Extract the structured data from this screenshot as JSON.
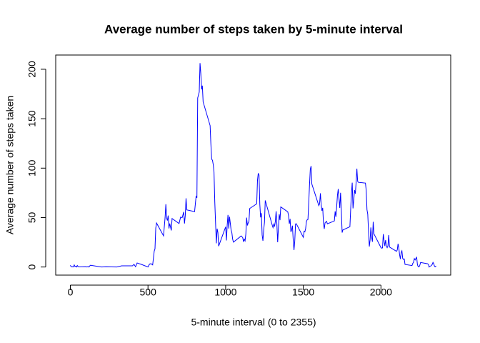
{
  "chart_data": {
    "type": "line",
    "title": "Average number of steps taken by 5-minute interval",
    "xlabel": "5-minute interval (0 to 2355)",
    "ylabel": "Average number of steps taken",
    "color": "blue",
    "xlim": [
      -94.2,
      2449.2
    ],
    "ylim": [
      -8.2,
      214.4
    ],
    "xticks": [
      0,
      500,
      1000,
      1500,
      2000
    ],
    "yticks": [
      0,
      50,
      100,
      150,
      200
    ],
    "x": [
      0,
      5,
      10,
      15,
      20,
      25,
      30,
      35,
      40,
      45,
      50,
      55,
      100,
      105,
      110,
      115,
      120,
      125,
      130,
      200,
      230,
      300,
      330,
      400,
      410,
      420,
      430,
      440,
      450,
      500,
      510,
      520,
      530,
      540,
      545,
      550,
      555,
      600,
      610,
      615,
      620,
      625,
      630,
      635,
      640,
      650,
      655,
      700,
      710,
      720,
      730,
      735,
      740,
      745,
      750,
      800,
      810,
      815,
      820,
      830,
      835,
      840,
      845,
      850,
      855,
      900,
      905,
      910,
      915,
      920,
      925,
      930,
      935,
      940,
      945,
      950,
      955,
      1000,
      1005,
      1010,
      1015,
      1020,
      1025,
      1030,
      1035,
      1040,
      1045,
      1050,
      1100,
      1110,
      1115,
      1120,
      1125,
      1130,
      1135,
      1140,
      1145,
      1150,
      1155,
      1200,
      1205,
      1210,
      1215,
      1220,
      1225,
      1230,
      1235,
      1240,
      1245,
      1250,
      1255,
      1300,
      1305,
      1310,
      1315,
      1320,
      1325,
      1330,
      1335,
      1340,
      1345,
      1350,
      1355,
      1400,
      1405,
      1410,
      1415,
      1420,
      1425,
      1430,
      1435,
      1440,
      1445,
      1450,
      1455,
      1500,
      1505,
      1510,
      1515,
      1520,
      1525,
      1530,
      1535,
      1540,
      1545,
      1550,
      1555,
      1600,
      1605,
      1610,
      1615,
      1620,
      1625,
      1630,
      1635,
      1640,
      1645,
      1650,
      1655,
      1700,
      1705,
      1710,
      1715,
      1720,
      1725,
      1730,
      1735,
      1740,
      1745,
      1750,
      1755,
      1800,
      1805,
      1810,
      1815,
      1820,
      1825,
      1830,
      1835,
      1840,
      1845,
      1850,
      1855,
      1900,
      1905,
      1910,
      1915,
      1920,
      1925,
      1930,
      1935,
      1940,
      1945,
      1950,
      1955,
      2000,
      2005,
      2010,
      2015,
      2020,
      2025,
      2030,
      2035,
      2040,
      2045,
      2050,
      2055,
      2100,
      2105,
      2110,
      2115,
      2120,
      2125,
      2130,
      2135,
      2140,
      2145,
      2150,
      2155,
      2200,
      2205,
      2210,
      2215,
      2220,
      2225,
      2230,
      2235,
      2240,
      2245,
      2250,
      2255,
      2300,
      2305,
      2310,
      2315,
      2320,
      2325,
      2330,
      2335,
      2340,
      2345,
      2350,
      2355
    ],
    "values": [
      1.7,
      0.3,
      0.1,
      0.2,
      0.1,
      2.1,
      0.5,
      0.9,
      0,
      1.5,
      0.3,
      0.1,
      0.3,
      0,
      0.2,
      0.3,
      0,
      1.1,
      1.8,
      0,
      0.2,
      0,
      1.2,
      1.2,
      2.6,
      0.3,
      4.1,
      3.5,
      3.1,
      0,
      3,
      3.3,
      2.1,
      16,
      18.3,
      39.5,
      44.5,
      31.5,
      50,
      63.5,
      49.5,
      47,
      52,
      39,
      44,
      37,
      49,
      44,
      50.5,
      49.9,
      55.7,
      44,
      52,
      69.5,
      57.8,
      56,
      72,
      70,
      171,
      177,
      206.2,
      195.9,
      179.6,
      183.4,
      167,
      143,
      124,
      109,
      108,
      103.7,
      95.97,
      66,
      45,
      24,
      38.8,
      34.9,
      21.1,
      40.6,
      26.9,
      42.4,
      52.7,
      38.9,
      50.8,
      44.3,
      37.4,
      34.7,
      28.3,
      25.1,
      31.4,
      29.7,
      25.5,
      28.2,
      26.5,
      33.4,
      49.98,
      42,
      44.6,
      46,
      59.2,
      63.9,
      87.7,
      94.8,
      92.8,
      63.4,
      50.2,
      54.5,
      32.4,
      26.5,
      37.7,
      45.1,
      67.3,
      42.3,
      39.9,
      43.3,
      40.98,
      46.2,
      56.4,
      42.8,
      25.1,
      39.97,
      53.5,
      47.4,
      60.8,
      55.8,
      51.96,
      43.6,
      48.7,
      35.5,
      37.5,
      41.8,
      27.5,
      17.1,
      26.1,
      43.6,
      43.8,
      30,
      36.1,
      35.5,
      38.8,
      45.96,
      47.8,
      48.1,
      65.3,
      82.9,
      98.7,
      102.1,
      83.96,
      62.1,
      64.1,
      74.5,
      63.2,
      56.9,
      59.8,
      43.9,
      38.6,
      44.7,
      45.5,
      46.2,
      43.7,
      46.6,
      56.3,
      50.7,
      61.2,
      72.7,
      78.9,
      68.9,
      59.7,
      75.1,
      56.5,
      34.8,
      37.5,
      40.7,
      58,
      74.7,
      85.3,
      59.3,
      67.8,
      77.7,
      74.2,
      85.3,
      99.5,
      86.6,
      85.6,
      84.9,
      77.8,
      58,
      53.4,
      36.3,
      20.7,
      27.4,
      40,
      30.2,
      25.5,
      45.7,
      33.5,
      19.6,
      19,
      19.3,
      33.3,
      26.8,
      21.2,
      27.3,
      21.3,
      19.5,
      21.3,
      32.3,
      20.2,
      15.9,
      17.2,
      23.5,
      19.2,
      12.5,
      8,
      14.7,
      16.3,
      8.7,
      7.8,
      8.1,
      2.6,
      1.5,
      3.7,
      4.8,
      8.5,
      7.1,
      8.7,
      9.8,
      2.2,
      0.3,
      0.1,
      1.6,
      4.6,
      3.3,
      2.8,
      0,
      0.8,
      0.96,
      1.6,
      2.6,
      4.7,
      3.3,
      0.6,
      0.2,
      1.1
    ]
  }
}
